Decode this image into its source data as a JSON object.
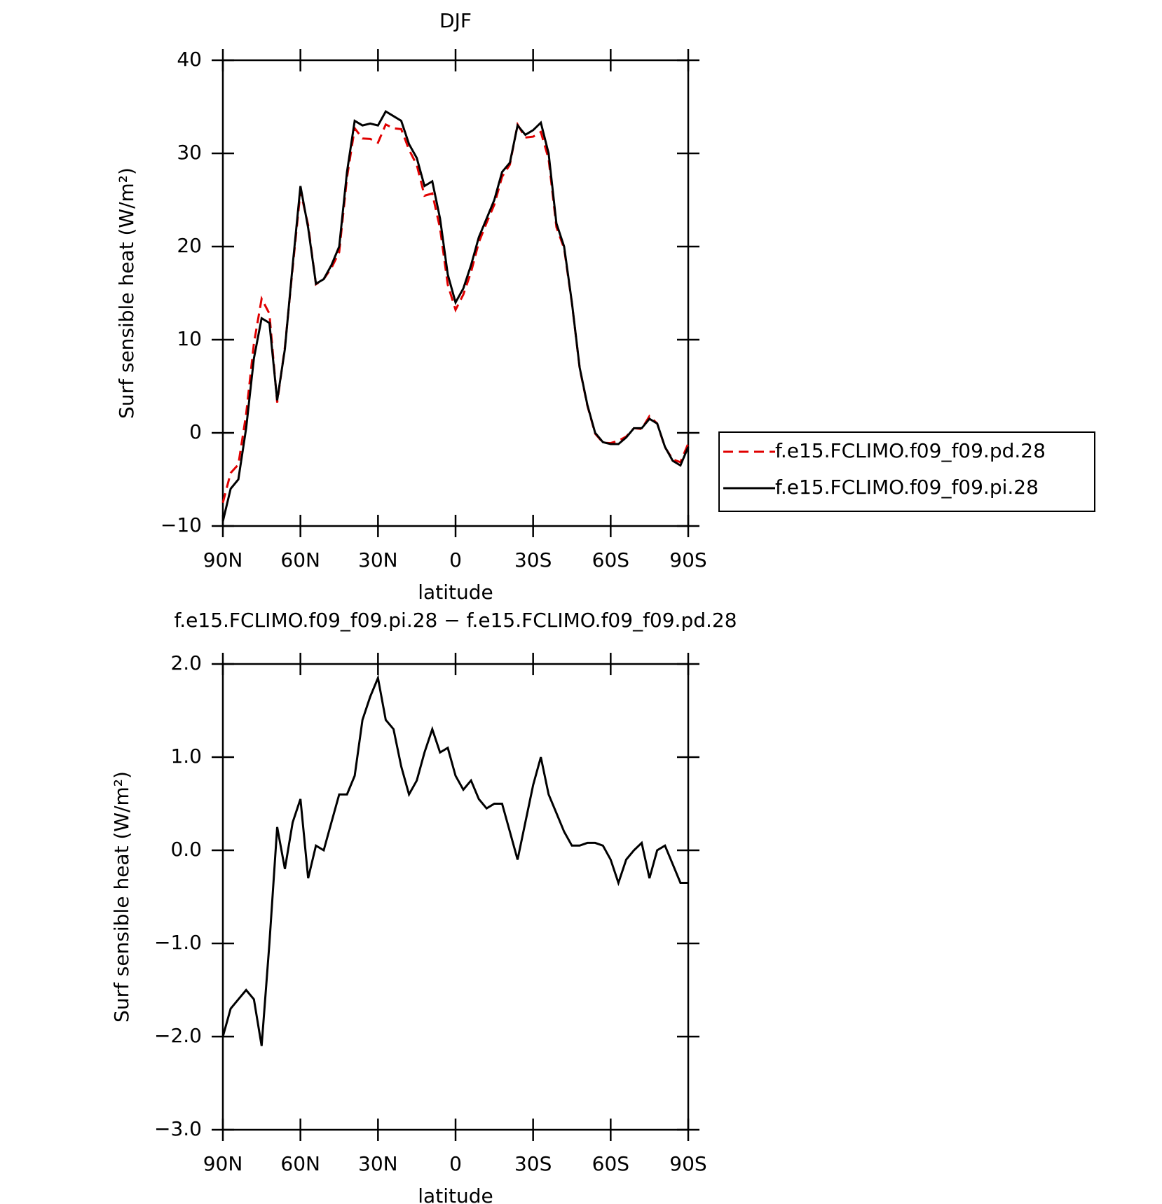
{
  "chart_data": [
    {
      "type": "line",
      "title": "DJF",
      "ylabel": "Surf sensible heat (W/m²)",
      "xlabel": "latitude",
      "xlim": [
        90,
        -90
      ],
      "ylim": [
        -10,
        40
      ],
      "xticks": [
        {
          "value": 90,
          "label": "90N"
        },
        {
          "value": 60,
          "label": "60N"
        },
        {
          "value": 30,
          "label": "30N"
        },
        0,
        {
          "value": -30,
          "label": "30S"
        },
        {
          "value": -60,
          "label": "60S"
        },
        {
          "value": -90,
          "label": "90S"
        }
      ],
      "yticks": [
        {
          "value": -10,
          "label": "−10"
        },
        0,
        10,
        20,
        30,
        40
      ],
      "legend": "right",
      "x": [
        90,
        87,
        84,
        81,
        78,
        75,
        72,
        69,
        66,
        63,
        60,
        57,
        54,
        51,
        48,
        45,
        42,
        39,
        36,
        33,
        30,
        27,
        24,
        21,
        18,
        15,
        12,
        9,
        6,
        3,
        0,
        -3,
        -6,
        -9,
        -12,
        -15,
        -18,
        -21,
        -24,
        -27,
        -30,
        -33,
        -36,
        -39,
        -42,
        -45,
        -48,
        -51,
        -54,
        -57,
        -60,
        -63,
        -66,
        -69,
        -72,
        -75,
        -78,
        -81,
        -84,
        -87,
        -90
      ],
      "series": [
        {
          "name": "f.e15.FCLIMO.f09_f09.pd.28",
          "color": "#e00000",
          "dash": true,
          "values": [
            -7.5,
            -4.3,
            -3.4,
            2.0,
            9.6,
            14.4,
            12.8,
            3.25,
            9.2,
            17.7,
            25.95,
            22.3,
            15.95,
            16.5,
            17.7,
            19.4,
            27.4,
            32.7,
            31.6,
            31.55,
            31.15,
            33.1,
            32.7,
            32.6,
            30.4,
            28.75,
            25.45,
            25.7,
            21.95,
            15.9,
            13.2,
            14.85,
            17.25,
            20.45,
            22.55,
            24.5,
            27.5,
            28.8,
            33.1,
            31.7,
            31.8,
            32.3,
            29.4,
            22.1,
            19.8,
            13.95,
            6.95,
            2.92,
            -0.08,
            -1.05,
            -1.1,
            -0.85,
            -0.4,
            0.5,
            0.42,
            1.8,
            1.0,
            -1.55,
            -2.85,
            -3.15,
            -1.15
          ]
        },
        {
          "name": "f.e15.FCLIMO.f09_f09.pi.28",
          "color": "#000000",
          "dash": false,
          "values": [
            -9.5,
            -6,
            -5,
            0.5,
            8,
            12.3,
            11.8,
            3.5,
            9,
            18,
            26.5,
            22,
            16,
            16.5,
            18,
            20,
            28,
            33.5,
            33,
            33.2,
            33,
            34.5,
            34,
            33.5,
            31,
            29.5,
            26.5,
            27,
            23,
            17,
            14,
            15.5,
            18,
            21,
            23,
            25,
            28,
            29,
            33,
            32,
            32.5,
            33.3,
            30,
            22.5,
            20,
            14,
            7,
            3,
            0,
            -1,
            -1.2,
            -1.2,
            -0.5,
            0.5,
            0.5,
            1.5,
            1,
            -1.5,
            -3,
            -3.5,
            -1.5
          ]
        }
      ]
    },
    {
      "type": "line",
      "title": "f.e15.FCLIMO.f09_f09.pi.28 − f.e15.FCLIMO.f09_f09.pd.28",
      "ylabel": "Surf sensible heat (W/m²)",
      "xlabel": "latitude",
      "xlim": [
        90,
        -90
      ],
      "ylim": [
        -3,
        2
      ],
      "xticks": [
        {
          "value": 90,
          "label": "90N"
        },
        {
          "value": 60,
          "label": "60N"
        },
        {
          "value": 30,
          "label": "30N"
        },
        0,
        {
          "value": -30,
          "label": "30S"
        },
        {
          "value": -60,
          "label": "60S"
        },
        {
          "value": -90,
          "label": "90S"
        }
      ],
      "yticks": [
        {
          "value": -3,
          "label": "−3.0"
        },
        {
          "value": -2,
          "label": "−2.0"
        },
        {
          "value": -1,
          "label": "−1.0"
        },
        {
          "value": 0,
          "label": "0.0"
        },
        {
          "value": 1,
          "label": "1.0"
        },
        {
          "value": 2,
          "label": "2.0"
        }
      ],
      "x": [
        90,
        87,
        84,
        81,
        78,
        75,
        72,
        69,
        66,
        63,
        60,
        57,
        54,
        51,
        48,
        45,
        42,
        39,
        36,
        33,
        30,
        27,
        24,
        21,
        18,
        15,
        12,
        9,
        6,
        3,
        0,
        -3,
        -6,
        -9,
        -12,
        -15,
        -18,
        -21,
        -24,
        -27,
        -30,
        -33,
        -36,
        -39,
        -42,
        -45,
        -48,
        -51,
        -54,
        -57,
        -60,
        -63,
        -66,
        -69,
        -72,
        -75,
        -78,
        -81,
        -84,
        -87,
        -90
      ],
      "series": [
        {
          "color": "#000000",
          "dash": false,
          "values": [
            -2.0,
            -1.7,
            -1.6,
            -1.5,
            -1.6,
            -2.1,
            -1.0,
            0.25,
            -0.2,
            0.3,
            0.55,
            -0.3,
            0.05,
            0.0,
            0.3,
            0.6,
            0.6,
            0.8,
            1.4,
            1.65,
            1.85,
            1.4,
            1.3,
            0.9,
            0.6,
            0.75,
            1.05,
            1.3,
            1.05,
            1.1,
            0.8,
            0.65,
            0.75,
            0.55,
            0.45,
            0.5,
            0.5,
            0.2,
            -0.1,
            0.3,
            0.7,
            1.0,
            0.6,
            0.4,
            0.2,
            0.05,
            0.05,
            0.08,
            0.08,
            0.05,
            -0.1,
            -0.35,
            -0.1,
            0.0,
            0.08,
            -0.3,
            0.0,
            0.05,
            -0.15,
            -0.35,
            -0.35
          ]
        }
      ]
    }
  ]
}
